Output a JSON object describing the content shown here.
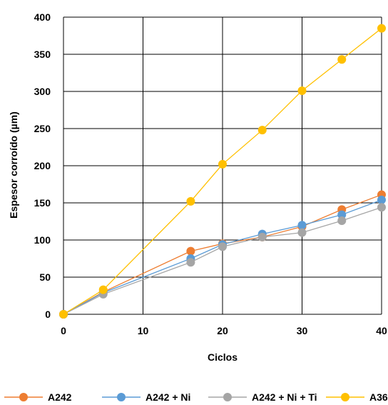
{
  "chart_data": {
    "type": "line",
    "title": "",
    "xlabel": "Ciclos",
    "ylabel": "Espesor corroído (µm)",
    "xlim": [
      0,
      40
    ],
    "ylim": [
      0,
      400
    ],
    "xticks": [
      0,
      10,
      20,
      30,
      40
    ],
    "yticks": [
      0,
      50,
      100,
      150,
      200,
      250,
      300,
      350,
      400
    ],
    "grid": true,
    "legend": "bottom",
    "series": [
      {
        "name": "A242",
        "color": "#ED7D31",
        "x": [
          0,
          5,
          16,
          20,
          25,
          30,
          35,
          40
        ],
        "y": [
          0,
          30,
          85,
          95,
          104,
          118,
          141,
          161
        ]
      },
      {
        "name": "A242 + Ni",
        "color": "#5B9BD5",
        "x": [
          0,
          5,
          16,
          20,
          25,
          30,
          35,
          40
        ],
        "y": [
          0,
          29,
          75,
          94,
          108,
          120,
          134,
          154
        ]
      },
      {
        "name": "A242 + Ni + Ti",
        "color": "#A5A5A5",
        "x": [
          0,
          5,
          16,
          20,
          25,
          30,
          35,
          40
        ],
        "y": [
          0,
          27,
          70,
          91,
          104,
          110,
          126,
          144
        ]
      },
      {
        "name": "A36",
        "color": "#FFC000",
        "x": [
          0,
          5,
          16,
          20,
          25,
          30,
          35,
          40
        ],
        "y": [
          0,
          33,
          152,
          202,
          248,
          301,
          343,
          385
        ]
      }
    ]
  }
}
